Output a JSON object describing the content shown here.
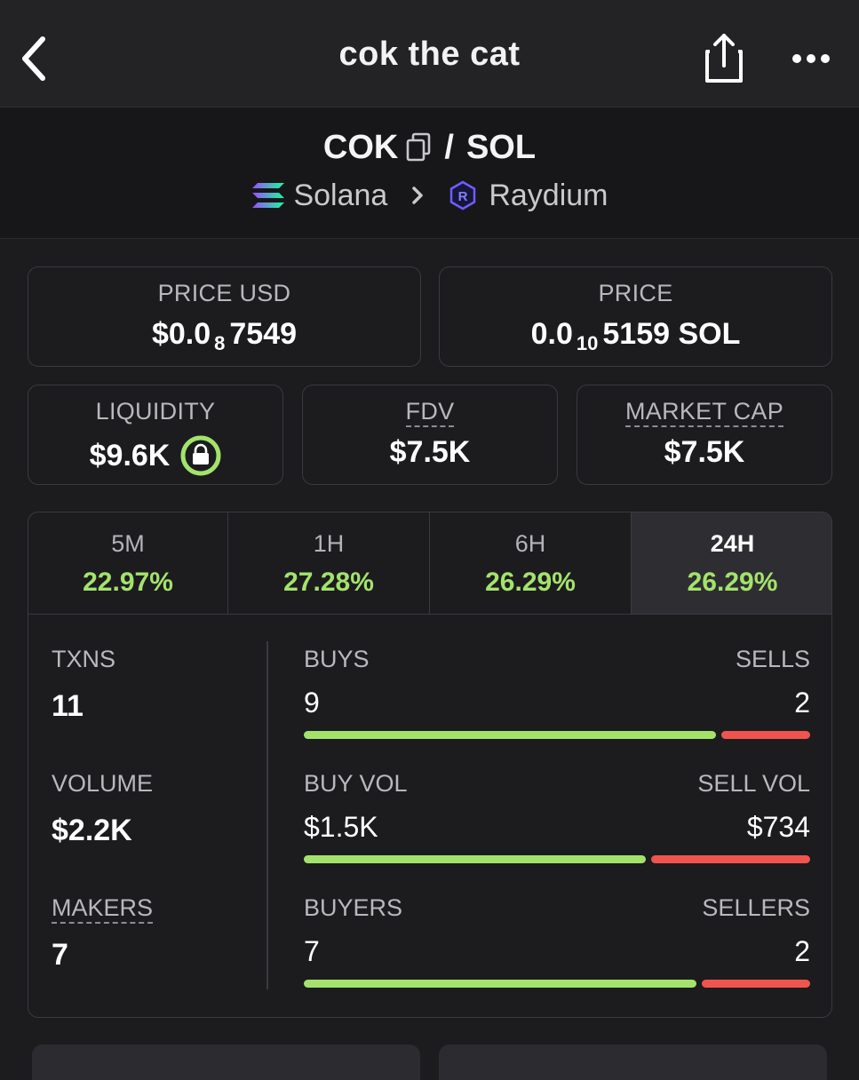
{
  "header": {
    "title": "cok the cat"
  },
  "pair": {
    "base": "COK",
    "slash": "/",
    "quote": "SOL",
    "chain": "Solana",
    "dex": "Raydium"
  },
  "prices": {
    "usd_label": "PRICE USD",
    "usd_prefix": "$0.0",
    "usd_zeros": "8",
    "usd_digits": "7549",
    "native_label": "PRICE",
    "native_prefix": "0.0",
    "native_zeros": "10",
    "native_digits": "5159 SOL"
  },
  "metrics": {
    "liquidity_label": "LIQUIDITY",
    "liquidity_value": "$9.6K",
    "fdv_label": "FDV",
    "fdv_value": "$7.5K",
    "mcap_label": "MARKET CAP",
    "mcap_value": "$7.5K"
  },
  "tabs": [
    {
      "label": "5M",
      "change": "22.97%"
    },
    {
      "label": "1H",
      "change": "27.28%"
    },
    {
      "label": "6H",
      "change": "26.29%"
    },
    {
      "label": "24H",
      "change": "26.29%"
    }
  ],
  "active_tab": "24H",
  "stats": {
    "txns": {
      "label": "TXNS",
      "value": "11",
      "buys_label": "BUYS",
      "sells_label": "SELLS",
      "buys": "9",
      "sells": "2",
      "buy_share": 0.82
    },
    "volume": {
      "label": "VOLUME",
      "value": "$2.2K",
      "buy_label": "BUY VOL",
      "sell_label": "SELL VOL",
      "buy": "$1.5K",
      "sell": "$734",
      "buy_share": 0.68
    },
    "makers": {
      "label": "MAKERS",
      "value": "7",
      "buyers_label": "BUYERS",
      "sellers_label": "SELLERS",
      "buyers": "7",
      "sellers": "2",
      "buy_share": 0.78
    }
  },
  "colors": {
    "positive": "#a4e36b",
    "negative": "#f0544f",
    "background": "#1c1c1f",
    "header": "#232326"
  },
  "icons": {
    "back": "back-chevron-icon",
    "share": "share-icon",
    "more": "more-icon",
    "copy": "copy-icon",
    "solana": "solana-icon",
    "chevron": "chevron-right-icon",
    "raydium": "raydium-icon",
    "lock": "lock-icon"
  }
}
